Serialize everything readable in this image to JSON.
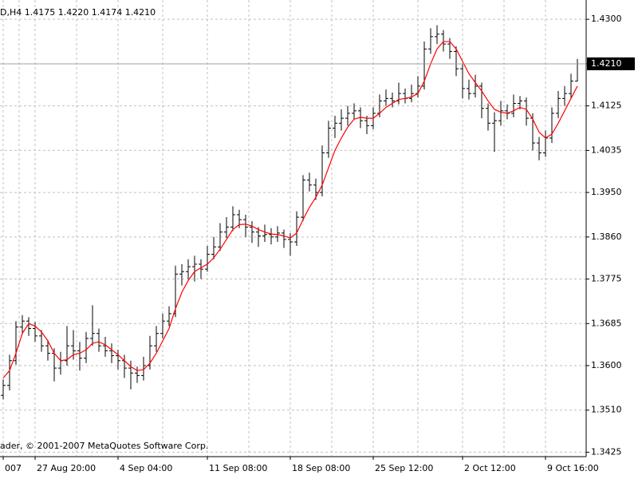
{
  "chart_data": {
    "type": "ohlc",
    "title": "D,H4  1.4175 1.4220 1.4174 1.4210",
    "copyright": "ader, © 2001-2007 MetaQuotes Software Corp.",
    "categories": [
      "007",
      null,
      null,
      null,
      null,
      "27 Aug 20:00",
      null,
      null,
      null,
      null,
      null,
      null,
      null,
      null,
      null,
      null,
      null,
      null,
      "4 Sep 04:00",
      null,
      null,
      null,
      null,
      null,
      null,
      null,
      null,
      null,
      null,
      null,
      null,
      null,
      "11 Sep 08:00",
      null,
      null,
      null,
      null,
      null,
      null,
      null,
      null,
      null,
      null,
      null,
      null,
      "18 Sep 08:00",
      null,
      null,
      null,
      null,
      null,
      null,
      null,
      null,
      null,
      null,
      null,
      null,
      "25 Sep 12:00",
      null,
      null,
      null,
      null,
      null,
      null,
      null,
      null,
      null,
      null,
      null,
      null,
      null,
      "2 Oct 12:00",
      null,
      null,
      null,
      null,
      null,
      null,
      null,
      null,
      null,
      null,
      null,
      null,
      "9 Oct 16:00",
      null,
      null,
      null,
      null,
      null
    ],
    "open": [
      1.354,
      1.356,
      1.361,
      1.3678,
      1.369,
      1.3675,
      1.366,
      1.364,
      1.3625,
      1.3595,
      1.361,
      1.364,
      1.363,
      1.3615,
      1.3655,
      1.3665,
      1.364,
      1.363,
      1.362,
      1.361,
      1.3595,
      1.3585,
      1.358,
      1.36,
      1.364,
      1.3665,
      1.369,
      1.3705,
      1.3785,
      1.379,
      1.38,
      1.3805,
      1.3795,
      1.3825,
      1.384,
      1.387,
      1.388,
      1.3905,
      1.3895,
      1.388,
      1.387,
      1.3862,
      1.3865,
      1.386,
      1.3868,
      1.3855,
      1.385,
      1.39,
      1.3975,
      1.3965,
      1.395,
      1.403,
      1.408,
      1.409,
      1.41,
      1.411,
      1.4115,
      1.4095,
      1.4085,
      1.411,
      1.4135,
      1.414,
      1.4135,
      1.415,
      1.414,
      1.415,
      1.4165,
      1.424,
      1.4265,
      1.427,
      1.425,
      1.4235,
      1.42,
      1.416,
      1.415,
      1.4165,
      1.412,
      1.409,
      1.4095,
      1.4115,
      1.411,
      1.413,
      1.4135,
      1.41,
      1.405,
      1.403,
      1.406,
      1.411,
      1.414,
      1.415,
      1.4175
    ],
    "high": [
      1.3572,
      1.3622,
      1.369,
      1.3702,
      1.3698,
      1.3688,
      1.3672,
      1.3652,
      1.3635,
      1.3628,
      1.368,
      1.3672,
      1.3648,
      1.3668,
      1.3722,
      1.3675,
      1.3658,
      1.3645,
      1.3632,
      1.3622,
      1.361,
      1.3598,
      1.3618,
      1.366,
      1.368,
      1.3705,
      1.372,
      1.3802,
      1.3805,
      1.3815,
      1.3822,
      1.3815,
      1.3842,
      1.386,
      1.3888,
      1.39,
      1.3922,
      1.3915,
      1.3905,
      1.3892,
      1.388,
      1.3885,
      1.3878,
      1.3882,
      1.3875,
      1.3868,
      1.3912,
      1.3985,
      1.399,
      1.3978,
      1.4045,
      1.4095,
      1.4105,
      1.4118,
      1.4125,
      1.413,
      1.4122,
      1.4105,
      1.4122,
      1.4148,
      1.4158,
      1.4152,
      1.4172,
      1.416,
      1.4168,
      1.4185,
      1.4255,
      1.4282,
      1.4288,
      1.4278,
      1.4262,
      1.4245,
      1.421,
      1.4178,
      1.4188,
      1.4172,
      1.413,
      1.4112,
      1.4135,
      1.4128,
      1.4148,
      1.4145,
      1.4142,
      1.411,
      1.4062,
      1.4075,
      1.4122,
      1.4155,
      1.4165,
      1.419,
      1.422
    ],
    "low": [
      1.3532,
      1.355,
      1.3602,
      1.3665,
      1.366,
      1.3648,
      1.3628,
      1.361,
      1.3568,
      1.3582,
      1.36,
      1.3612,
      1.359,
      1.3605,
      1.364,
      1.3628,
      1.3618,
      1.3605,
      1.3592,
      1.3575,
      1.3552,
      1.3565,
      1.357,
      1.3592,
      1.3628,
      1.3655,
      1.368,
      1.3698,
      1.3762,
      1.3775,
      1.377,
      1.3775,
      1.379,
      1.3815,
      1.3832,
      1.3858,
      1.3872,
      1.3878,
      1.386,
      1.3848,
      1.384,
      1.385,
      1.3845,
      1.385,
      1.3838,
      1.3822,
      1.3842,
      1.3892,
      1.3952,
      1.3935,
      1.3942,
      1.402,
      1.406,
      1.4075,
      1.4085,
      1.4098,
      1.408,
      1.4068,
      1.4078,
      1.4102,
      1.4125,
      1.4122,
      1.4128,
      1.413,
      1.4132,
      1.4142,
      1.4158,
      1.423,
      1.425,
      1.4235,
      1.422,
      1.4185,
      1.414,
      1.4138,
      1.4142,
      1.41,
      1.4075,
      1.4032,
      1.4085,
      1.4098,
      1.4102,
      1.4118,
      1.4085,
      1.4035,
      1.4015,
      1.4022,
      1.405,
      1.41,
      1.4125,
      1.414,
      1.4174
    ],
    "close": [
      1.356,
      1.361,
      1.3678,
      1.369,
      1.3675,
      1.366,
      1.364,
      1.3625,
      1.3595,
      1.361,
      1.364,
      1.363,
      1.3615,
      1.3655,
      1.3665,
      1.364,
      1.363,
      1.362,
      1.361,
      1.3595,
      1.3585,
      1.358,
      1.36,
      1.364,
      1.3665,
      1.369,
      1.3705,
      1.3785,
      1.379,
      1.38,
      1.3805,
      1.3795,
      1.3825,
      1.384,
      1.387,
      1.388,
      1.3905,
      1.3895,
      1.388,
      1.387,
      1.3862,
      1.3865,
      1.386,
      1.3868,
      1.3855,
      1.385,
      1.39,
      1.3975,
      1.3965,
      1.395,
      1.403,
      1.408,
      1.409,
      1.41,
      1.411,
      1.4115,
      1.4095,
      1.4085,
      1.411,
      1.4135,
      1.414,
      1.4135,
      1.415,
      1.414,
      1.415,
      1.4165,
      1.424,
      1.4265,
      1.427,
      1.425,
      1.4235,
      1.42,
      1.416,
      1.415,
      1.4165,
      1.412,
      1.409,
      1.4095,
      1.4115,
      1.411,
      1.413,
      1.4135,
      1.41,
      1.405,
      1.403,
      1.406,
      1.411,
      1.414,
      1.415,
      1.4175,
      1.421
    ],
    "bar_color": "#000000",
    "ma": {
      "color": "#ff0000",
      "values": [
        1.3575,
        1.359,
        1.3625,
        1.3665,
        1.3685,
        1.368,
        1.3668,
        1.365,
        1.3625,
        1.361,
        1.3612,
        1.3622,
        1.3625,
        1.3632,
        1.3645,
        1.3648,
        1.3642,
        1.3632,
        1.3622,
        1.361,
        1.3598,
        1.359,
        1.3592,
        1.3605,
        1.3625,
        1.365,
        1.3675,
        1.3715,
        1.3748,
        1.3772,
        1.379,
        1.3798,
        1.3805,
        1.3818,
        1.3835,
        1.3855,
        1.3875,
        1.3885,
        1.3886,
        1.3882,
        1.3875,
        1.387,
        1.3866,
        1.3865,
        1.3862,
        1.3858,
        1.3868,
        1.3895,
        1.392,
        1.394,
        1.3965,
        1.4,
        1.4035,
        1.406,
        1.4082,
        1.4098,
        1.4102,
        1.41,
        1.41,
        1.411,
        1.4122,
        1.413,
        1.4138,
        1.414,
        1.4143,
        1.415,
        1.4175,
        1.421,
        1.424,
        1.4255,
        1.4255,
        1.424,
        1.4215,
        1.419,
        1.4172,
        1.4155,
        1.4135,
        1.4118,
        1.4112,
        1.411,
        1.4115,
        1.4122,
        1.4118,
        1.4098,
        1.4072,
        1.406,
        1.4068,
        1.409,
        1.4115,
        1.414,
        1.4165
      ]
    },
    "last_price": {
      "value": 1.421,
      "label": "1.4210"
    },
    "ylim": [
      1.3416,
      1.4339
    ],
    "yticks": [
      {
        "value": 1.43,
        "label": "1.4300"
      },
      {
        "value": 1.421,
        "label": "1.4210"
      },
      {
        "value": 1.4125,
        "label": "1.4125"
      },
      {
        "value": 1.4035,
        "label": "1.4035"
      },
      {
        "value": 1.395,
        "label": "1.3950"
      },
      {
        "value": 1.386,
        "label": "1.3860"
      },
      {
        "value": 1.3775,
        "label": "1.3775"
      },
      {
        "value": 1.3685,
        "label": "1.3685"
      },
      {
        "value": 1.36,
        "label": "1.3600"
      },
      {
        "value": 1.351,
        "label": "1.3510"
      },
      {
        "value": 1.3425,
        "label": "1.3425"
      }
    ],
    "grid": true
  }
}
